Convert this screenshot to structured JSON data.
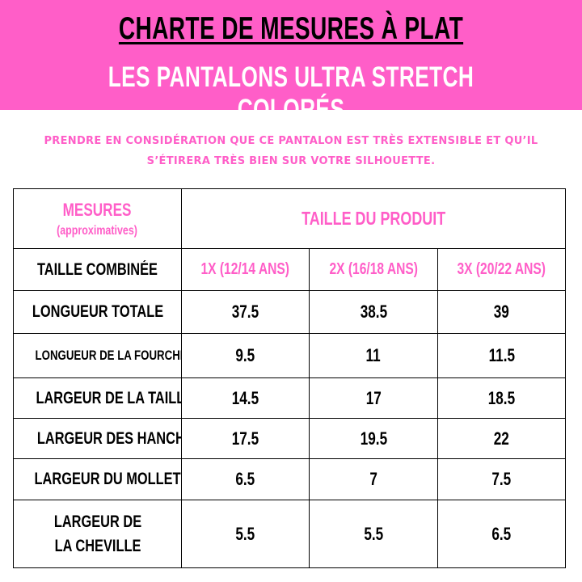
{
  "header": {
    "title": "CHARTE DE MESURES À PLAT",
    "subtitle": "LES PANTALONS ULTRA STRETCH COLORÉS",
    "background_color": "#ff5ec8",
    "title_color": "#000000",
    "subtitle_color": "#ffffff"
  },
  "note": {
    "line1": "PRENDRE EN CONSIDÉRATION QUE CE PANTALON EST TRÈS EXTENSIBLE ET QU’IL",
    "line2": "S’ÉTIRERA TRÈS BIEN SUR VOTRE SILHOUETTE.",
    "color": "#ff5ec8"
  },
  "table": {
    "measures_header": "MESURES",
    "measures_subheader": "(approximatives)",
    "product_size_header": "TAILLE DU PRODUIT",
    "combined_size_label": "TAILLE COMBINÉE",
    "sizes": [
      "1X (12/14 ANS)",
      "2X (16/18 ANS)",
      "3X (20/22 ANS)"
    ],
    "rows": [
      {
        "label": "LONGUEUR TOTALE",
        "values": [
          "37.5",
          "38.5",
          "39"
        ]
      },
      {
        "label": "LONGUEUR DE LA FOURCHE",
        "values": [
          "9.5",
          "11",
          "11.5"
        ]
      },
      {
        "label": "LARGEUR DE LA TAILLE",
        "values": [
          "14.5",
          "17",
          "18.5"
        ]
      },
      {
        "label": "LARGEUR DES HANCHES",
        "values": [
          "17.5",
          "19.5",
          "22"
        ]
      },
      {
        "label": "LARGEUR DU MOLLET",
        "values": [
          "6.5",
          "7",
          "7.5"
        ]
      },
      {
        "label": "LARGEUR DE LA CHEVILLE",
        "values": [
          "5.5",
          "5.5",
          "6.5"
        ]
      }
    ]
  }
}
